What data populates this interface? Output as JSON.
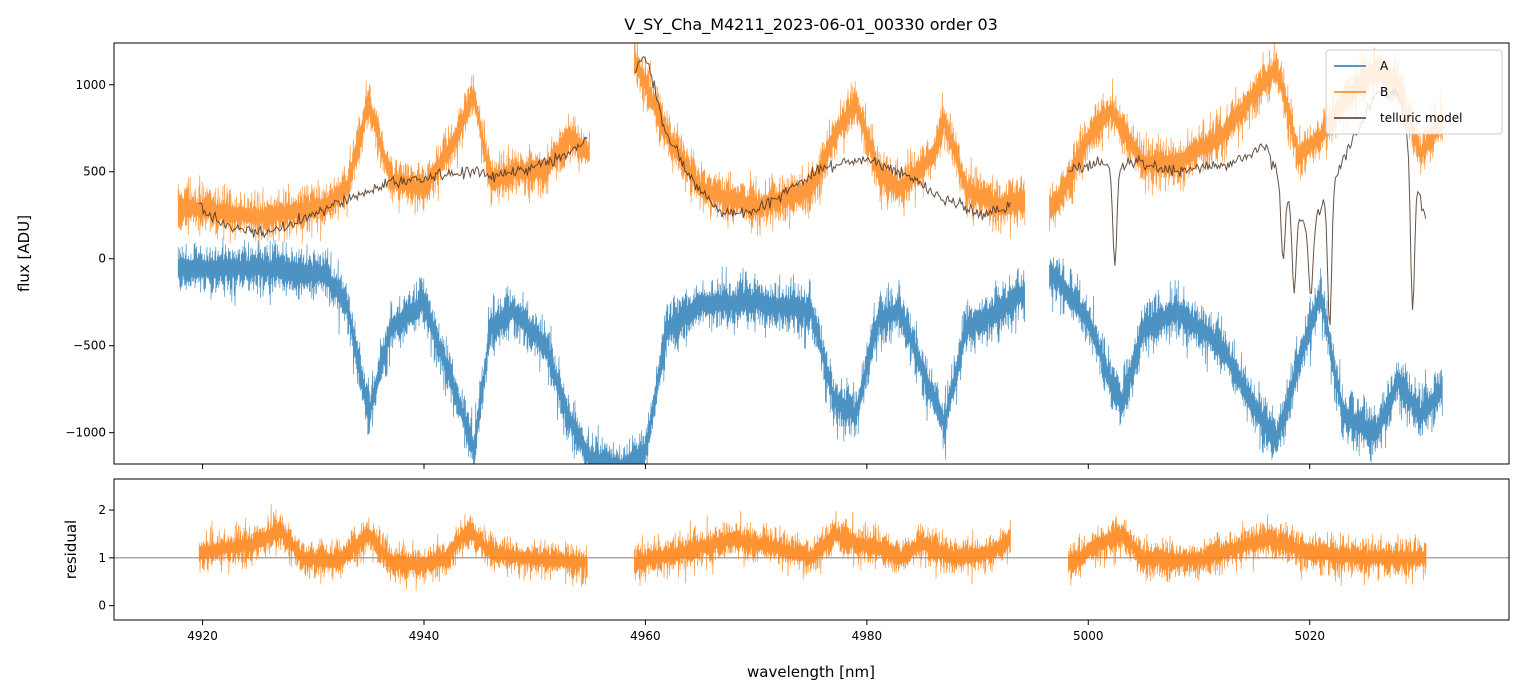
{
  "chart_data": [
    {
      "panel": "top",
      "type": "line",
      "title": "V_SY_Cha_M4211_2023-06-01_00330  order 03",
      "xlabel": "",
      "ylabel": "flux [ADU]",
      "xlim": [
        4912,
        5038
      ],
      "ylim": [
        -1180,
        1240
      ],
      "xticks": [
        4920,
        4940,
        4960,
        4980,
        5000,
        5020
      ],
      "yticks": [
        -1000,
        -500,
        0,
        500,
        1000
      ],
      "ytick_labels": [
        "−1000",
        "−500",
        "0",
        "500",
        "1000"
      ],
      "legend": {
        "location": "top-right",
        "entries": [
          "A",
          "B",
          "telluric model"
        ]
      },
      "series": [
        {
          "name": "A",
          "color": "#1f77b4",
          "segments": [
            [
              4917.8,
              4994.3
            ],
            [
              4996.5,
              5032
            ]
          ],
          "base_points": [
            [
              4918,
              -60
            ],
            [
              4925,
              -50
            ],
            [
              4931,
              -90
            ],
            [
              4933,
              -250
            ],
            [
              4935,
              -900
            ],
            [
              4937,
              -400
            ],
            [
              4940,
              -250
            ],
            [
              4943,
              -800
            ],
            [
              4944.5,
              -1100
            ],
            [
              4946,
              -400
            ],
            [
              4948,
              -300
            ],
            [
              4951,
              -500
            ],
            [
              4953,
              -900
            ],
            [
              4955,
              -1150
            ],
            [
              4958,
              -1200
            ],
            [
              4960,
              -1100
            ],
            [
              4962,
              -400
            ],
            [
              4965,
              -260
            ],
            [
              4970,
              -250
            ],
            [
              4975,
              -300
            ],
            [
              4977,
              -800
            ],
            [
              4979,
              -900
            ],
            [
              4981,
              -350
            ],
            [
              4983,
              -300
            ],
            [
              4986,
              -800
            ],
            [
              4987,
              -950
            ],
            [
              4989,
              -400
            ],
            [
              4992,
              -300
            ],
            [
              4994,
              -200
            ],
            [
              4997,
              -100
            ],
            [
              5000,
              -350
            ],
            [
              5002,
              -700
            ],
            [
              5003,
              -850
            ],
            [
              5005,
              -400
            ],
            [
              5008,
              -300
            ],
            [
              5012,
              -500
            ],
            [
              5015,
              -850
            ],
            [
              5017,
              -1050
            ],
            [
              5019,
              -600
            ],
            [
              5021,
              -200
            ],
            [
              5023,
              -900
            ],
            [
              5026,
              -1000
            ],
            [
              5028,
              -700
            ],
            [
              5030,
              -900
            ],
            [
              5032,
              -750
            ]
          ]
        },
        {
          "name": "B",
          "color": "#ff7f0e",
          "segments": [
            [
              4917.8,
              4955
            ],
            [
              4959,
              4994.3
            ],
            [
              4996.5,
              5032
            ]
          ],
          "base_points": [
            [
              4918,
              300
            ],
            [
              4925,
              240
            ],
            [
              4931,
              300
            ],
            [
              4933,
              400
            ],
            [
              4935,
              900
            ],
            [
              4937,
              450
            ],
            [
              4940,
              400
            ],
            [
              4943,
              700
            ],
            [
              4944.5,
              950
            ],
            [
              4946,
              450
            ],
            [
              4948,
              500
            ],
            [
              4951,
              500
            ],
            [
              4953,
              700
            ],
            [
              4955,
              600
            ],
            [
              4959,
              1150
            ],
            [
              4962,
              700
            ],
            [
              4965,
              400
            ],
            [
              4970,
              300
            ],
            [
              4975,
              400
            ],
            [
              4977,
              700
            ],
            [
              4979,
              900
            ],
            [
              4981,
              500
            ],
            [
              4983,
              400
            ],
            [
              4986,
              600
            ],
            [
              4987,
              800
            ],
            [
              4989,
              400
            ],
            [
              4992,
              300
            ],
            [
              4994,
              350
            ],
            [
              4997,
              300
            ],
            [
              5000,
              700
            ],
            [
              5002,
              850
            ],
            [
              5005,
              550
            ],
            [
              5008,
              550
            ],
            [
              5012,
              700
            ],
            [
              5015,
              950
            ],
            [
              5017,
              1100
            ],
            [
              5019,
              600
            ],
            [
              5021,
              700
            ],
            [
              5023,
              900
            ],
            [
              5026,
              1100
            ],
            [
              5028,
              1000
            ],
            [
              5030,
              600
            ],
            [
              5032,
              800
            ]
          ]
        },
        {
          "name": "telluric model",
          "color": "#4a3424",
          "segments": [
            [
              4919.7,
              4954.8
            ],
            [
              4959,
              4993
            ],
            [
              4998.2,
              5030.5
            ]
          ],
          "base_points": [
            [
              4919.7,
              300
            ],
            [
              4922,
              190
            ],
            [
              4925,
              150
            ],
            [
              4928,
              190
            ],
            [
              4931,
              280
            ],
            [
              4934,
              370
            ],
            [
              4937,
              440
            ],
            [
              4940,
              460
            ],
            [
              4943,
              500
            ],
            [
              4946,
              480
            ],
            [
              4950,
              530
            ],
            [
              4953,
              600
            ],
            [
              4954.8,
              700
            ],
            [
              4959,
              1080
            ],
            [
              4960,
              1170
            ],
            [
              4962,
              700
            ],
            [
              4965,
              380
            ],
            [
              4967,
              260
            ],
            [
              4970,
              280
            ],
            [
              4973,
              400
            ],
            [
              4976,
              520
            ],
            [
              4980,
              580
            ],
            [
              4983,
              500
            ],
            [
              4986,
              380
            ],
            [
              4990,
              260
            ],
            [
              4993,
              300
            ],
            [
              4998.2,
              500
            ],
            [
              5001,
              560
            ],
            [
              5002.5,
              500
            ],
            [
              5004,
              560
            ],
            [
              5008,
              510
            ],
            [
              5012,
              530
            ],
            [
              5016,
              640
            ],
            [
              5017,
              500
            ],
            [
              5018,
              350
            ],
            [
              5020,
              150
            ],
            [
              5024,
              700
            ],
            [
              5026,
              950
            ],
            [
              5028,
              950
            ],
            [
              5030.5,
              200
            ]
          ],
          "dips": [
            [
              5002.4,
              -40
            ],
            [
              5017.6,
              -10
            ],
            [
              5018.6,
              -200
            ],
            [
              5020.1,
              -220
            ],
            [
              5021.8,
              -400
            ],
            [
              5029.3,
              -300
            ]
          ]
        }
      ]
    },
    {
      "panel": "bottom",
      "type": "line",
      "xlabel": "wavelength [nm]",
      "ylabel": "residual",
      "xlim": [
        4912,
        5038
      ],
      "ylim": [
        -0.3,
        2.65
      ],
      "xticks": [
        4920,
        4940,
        4960,
        4980,
        5000,
        5020
      ],
      "yticks": [
        0,
        1,
        2
      ],
      "ytick_labels": [
        "0",
        "1",
        "2"
      ],
      "reference_line": 1,
      "series": [
        {
          "name": "residual",
          "color": "#ff7f0e",
          "segments": [
            [
              4919.7,
              4954.8
            ],
            [
              4959,
              4993
            ],
            [
              4998.2,
              5030.5
            ]
          ],
          "base_points": [
            [
              4919.7,
              1.1
            ],
            [
              4922,
              1.2
            ],
            [
              4925,
              1.3
            ],
            [
              4927,
              1.6
            ],
            [
              4929,
              1.0
            ],
            [
              4932,
              0.9
            ],
            [
              4935,
              1.5
            ],
            [
              4937,
              0.9
            ],
            [
              4940,
              0.85
            ],
            [
              4942,
              1.0
            ],
            [
              4944,
              1.6
            ],
            [
              4946,
              1.1
            ],
            [
              4949,
              1.0
            ],
            [
              4952,
              0.95
            ],
            [
              4954.8,
              0.9
            ],
            [
              4959,
              0.9
            ],
            [
              4963,
              1.1
            ],
            [
              4968,
              1.4
            ],
            [
              4972,
              1.2
            ],
            [
              4975,
              1.0
            ],
            [
              4977,
              1.5
            ],
            [
              4979,
              1.3
            ],
            [
              4981,
              1.2
            ],
            [
              4983,
              1.0
            ],
            [
              4985,
              1.3
            ],
            [
              4988,
              1.0
            ],
            [
              4991,
              1.1
            ],
            [
              4993,
              1.4
            ],
            [
              4998.2,
              0.85
            ],
            [
              5001,
              1.3
            ],
            [
              5003,
              1.5
            ],
            [
              5005,
              1.0
            ],
            [
              5010,
              0.95
            ],
            [
              5016,
              1.4
            ],
            [
              5020,
              1.1
            ],
            [
              5025,
              1.0
            ],
            [
              5030.5,
              1.0
            ]
          ]
        }
      ]
    }
  ]
}
